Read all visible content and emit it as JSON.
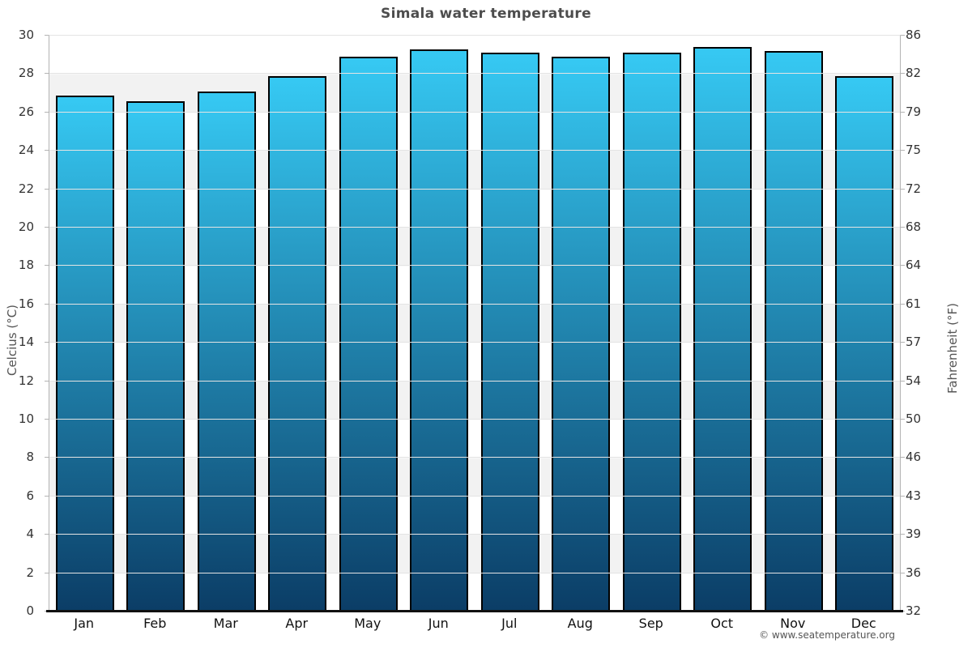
{
  "header": {
    "title": "Simala water temperature"
  },
  "footer": {
    "attribution": "© www.seatemperature.org"
  },
  "colors": {
    "bar_gradient_top": "#36c9f3",
    "bar_gradient_bottom": "#0b3d66",
    "bar_border": "#000000",
    "band_light": "#ffffff",
    "band_shaded": "#f2f2f2",
    "gridline": "#e4e4e4",
    "axis_line": "#b3b3b3",
    "baseline": "#111111",
    "title_text": "#4d4d4d",
    "tick_text": "#333333",
    "axis_title_text": "#555555",
    "footer_text": "#555555"
  },
  "chart_data": {
    "type": "bar",
    "title": "Simala water temperature",
    "categories": [
      "Jan",
      "Feb",
      "Mar",
      "Apr",
      "May",
      "Jun",
      "Jul",
      "Aug",
      "Sep",
      "Oct",
      "Nov",
      "Dec"
    ],
    "values": [
      26.9,
      26.6,
      27.1,
      27.9,
      28.9,
      29.3,
      29.1,
      28.9,
      29.1,
      29.4,
      29.2,
      27.9
    ],
    "unit": "°C",
    "ylabel_left": "Celcius (°C)",
    "ylabel_right": "Fahrenheit (°F)",
    "ylim_c": [
      0,
      30
    ],
    "ytick_step_c": 2,
    "yticks_celsius": [
      0,
      2,
      4,
      6,
      8,
      10,
      12,
      14,
      16,
      18,
      20,
      22,
      24,
      26,
      28,
      30
    ],
    "yticks_fahrenheit": [
      32,
      36,
      39,
      43,
      46,
      50,
      54,
      57,
      61,
      64,
      68,
      72,
      75,
      79,
      82,
      86
    ],
    "grid": "alternating 2°C horizontal bands, shaded every odd band",
    "legend": "none"
  }
}
